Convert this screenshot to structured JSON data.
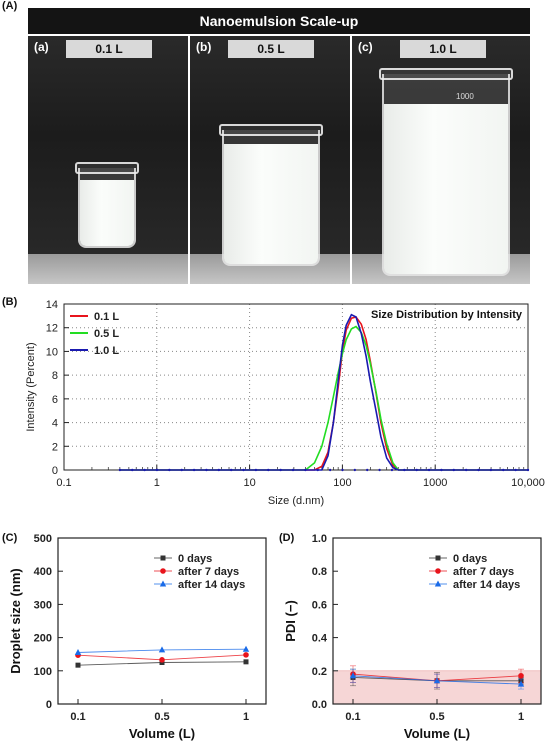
{
  "panel_labels": {
    "a": "(A)",
    "b": "(B)",
    "c": "(C)",
    "d": "(D)"
  },
  "photo_section": {
    "banner_title": "Nanoemulsion Scale-up",
    "panels": [
      {
        "id": "(a)",
        "volume": "0.1 L"
      },
      {
        "id": "(b)",
        "volume": "0.5 L"
      },
      {
        "id": "(c)",
        "volume": "1.0 L",
        "beaker_marking": "1000"
      }
    ]
  },
  "colors": {
    "red": "#e8141c",
    "green": "#22dd22",
    "blue": "#1a1ab0",
    "purple": "#7a1aa0",
    "black": "#333333",
    "shade": "#f6d6d6"
  },
  "chart_data": [
    {
      "type": "line",
      "title": "Size Distribution by Intensity",
      "xlabel": "Size (d.nm)",
      "ylabel": "Intensity (Percent)",
      "xscale": "log",
      "xlim": [
        0.1,
        10000
      ],
      "ylim": [
        0,
        14
      ],
      "x_ticks": [
        "0.1",
        "1",
        "10",
        "100",
        "1000",
        "10,000"
      ],
      "y_ticks": [
        "0",
        "2",
        "4",
        "6",
        "8",
        "10",
        "12",
        "14"
      ],
      "grid": true,
      "legend_position": "top-left",
      "series": [
        {
          "name": "0.1 L",
          "color": "#e8141c",
          "x": [
            0.4,
            50,
            60,
            70,
            80,
            90,
            100,
            110,
            125,
            140,
            160,
            180,
            200,
            230,
            260,
            300,
            350,
            400,
            10000
          ],
          "y": [
            0,
            0,
            0.3,
            1.5,
            4,
            7,
            10,
            11.8,
            12.8,
            12.9,
            12.3,
            11,
            9.2,
            6.5,
            4,
            1.8,
            0.4,
            0,
            0
          ]
        },
        {
          "name": "0.5 L",
          "color": "#22dd22",
          "x": [
            0.4,
            40,
            50,
            60,
            70,
            80,
            90,
            100,
            110,
            125,
            140,
            160,
            180,
            200,
            230,
            260,
            300,
            350,
            400,
            10000
          ],
          "y": [
            0,
            0,
            0.6,
            2,
            4,
            6.2,
            8.2,
            9.8,
            11,
            11.9,
            12.1,
            11.6,
            10.5,
            9,
            6.6,
            4.3,
            2.2,
            0.6,
            0,
            0
          ]
        },
        {
          "name": "1.0 L",
          "color": "#1a1ab0",
          "x": [
            0.4,
            60,
            70,
            80,
            90,
            100,
            110,
            125,
            140,
            160,
            180,
            200,
            230,
            260,
            300,
            350,
            400,
            10000
          ],
          "y": [
            0,
            0,
            1.2,
            4,
            7.5,
            10.5,
            12.2,
            13.1,
            12.9,
            11.5,
            9.6,
            7.5,
            5,
            2.8,
            1,
            0.2,
            0,
            0
          ]
        }
      ]
    },
    {
      "type": "line",
      "title": "",
      "xlabel": "Volume (L)",
      "ylabel": "Droplet size (nm)",
      "categories": [
        "0.1",
        "0.5",
        "1"
      ],
      "ylim": [
        0,
        500
      ],
      "y_ticks": [
        "0",
        "100",
        "200",
        "300",
        "400",
        "500"
      ],
      "grid": false,
      "legend_position": "top-right",
      "series": [
        {
          "name": "0 days",
          "color": "#333333",
          "marker": "square",
          "values": [
            117,
            125,
            127
          ]
        },
        {
          "name": "after 7 days",
          "color": "#e8141c",
          "marker": "circle",
          "values": [
            147,
            133,
            148
          ]
        },
        {
          "name": "after 14 days",
          "color": "#1a6be8",
          "marker": "triangle",
          "values": [
            155,
            163,
            165
          ]
        }
      ]
    },
    {
      "type": "line",
      "title": "",
      "xlabel": "Volume (L)",
      "ylabel": "PDI (−)",
      "categories": [
        "0.1",
        "0.5",
        "1"
      ],
      "ylim": [
        0,
        1.0
      ],
      "y_ticks": [
        "0.0",
        "0.2",
        "0.4",
        "0.6",
        "0.8",
        "1.0"
      ],
      "shaded_band": [
        0,
        0.2
      ],
      "grid": false,
      "legend_position": "top-right",
      "series": [
        {
          "name": "0 days",
          "color": "#333333",
          "marker": "square",
          "values": [
            0.16,
            0.14,
            0.14
          ],
          "error": [
            0.05,
            0.05,
            0.02
          ]
        },
        {
          "name": "after 7 days",
          "color": "#e8141c",
          "marker": "circle",
          "values": [
            0.18,
            0.14,
            0.17
          ],
          "error": [
            0.05,
            0.04,
            0.04
          ]
        },
        {
          "name": "after 14 days",
          "color": "#1a6be8",
          "marker": "triangle",
          "values": [
            0.17,
            0.14,
            0.12
          ],
          "error": [
            0.04,
            0.04,
            0.03
          ]
        }
      ]
    }
  ]
}
